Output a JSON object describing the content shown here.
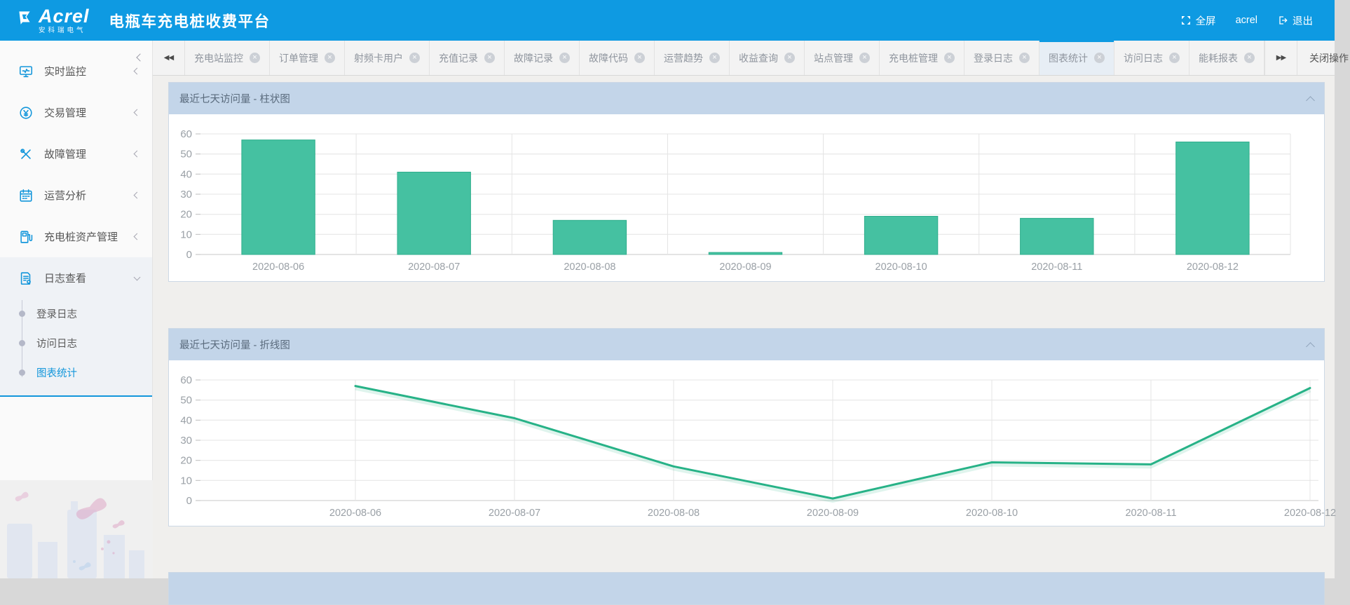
{
  "header": {
    "brand": "Acrel",
    "brand_sub": "安科瑞电气",
    "title": "电瓶车充电桩收费平台",
    "fullscreen_label": "全屏",
    "username": "acrel",
    "logout_label": "退出"
  },
  "sidebar": {
    "items": [
      {
        "icon": "monitor-icon",
        "label": "实时监控",
        "expanded": false
      },
      {
        "icon": "transaction-icon",
        "label": "交易管理",
        "expanded": false
      },
      {
        "icon": "tools-icon",
        "label": "故障管理",
        "expanded": false
      },
      {
        "icon": "calendar-icon",
        "label": "运营分析",
        "expanded": false
      },
      {
        "icon": "charging-pile-icon",
        "label": "充电桩资产管理",
        "expanded": false
      },
      {
        "icon": "log-icon",
        "label": "日志查看",
        "expanded": true,
        "children": [
          {
            "label": "登录日志",
            "active": false
          },
          {
            "label": "访问日志",
            "active": false
          },
          {
            "label": "图表统计",
            "active": true
          }
        ]
      }
    ]
  },
  "tabbar": {
    "tabs": [
      {
        "label": "充电站监控",
        "active": false
      },
      {
        "label": "订单管理",
        "active": false
      },
      {
        "label": "射频卡用户",
        "active": false
      },
      {
        "label": "充值记录",
        "active": false
      },
      {
        "label": "故障记录",
        "active": false
      },
      {
        "label": "故障代码",
        "active": false
      },
      {
        "label": "运营趋势",
        "active": false
      },
      {
        "label": "收益查询",
        "active": false
      },
      {
        "label": "站点管理",
        "active": false
      },
      {
        "label": "充电桩管理",
        "active": false
      },
      {
        "label": "登录日志",
        "active": false
      },
      {
        "label": "图表统计",
        "active": true
      },
      {
        "label": "访问日志",
        "active": false
      },
      {
        "label": "能耗报表",
        "active": false
      }
    ],
    "close_menu_label": "关闭操作"
  },
  "panels": [
    {
      "title": "最近七天访问量 - 柱状图"
    },
    {
      "title": "最近七天访问量 - 折线图"
    },
    {
      "title": ""
    }
  ],
  "chart_data": [
    {
      "type": "bar",
      "title": "最近七天访问量 - 柱状图",
      "categories": [
        "2020-08-06",
        "2020-08-07",
        "2020-08-08",
        "2020-08-09",
        "2020-08-10",
        "2020-08-11",
        "2020-08-12"
      ],
      "values": [
        57,
        41,
        17,
        1,
        19,
        18,
        56
      ],
      "xlabel": "",
      "ylabel": "",
      "ylim": [
        0,
        60
      ],
      "ytick_interval": 10,
      "grid": true,
      "legend": false,
      "bar_color": "#45c1a1"
    },
    {
      "type": "line",
      "title": "最近七天访问量 - 折线图",
      "categories": [
        "2020-08-06",
        "2020-08-07",
        "2020-08-08",
        "2020-08-09",
        "2020-08-10",
        "2020-08-11",
        "2020-08-12"
      ],
      "values": [
        57,
        41,
        17,
        1,
        19,
        18,
        56
      ],
      "xlabel": "",
      "ylabel": "",
      "ylim": [
        0,
        60
      ],
      "ytick_interval": 10,
      "grid": true,
      "legend": false,
      "line_color": "#27b287"
    }
  ],
  "colors": {
    "topbar_blue": "#0e9ae2",
    "accent_blue": "#1296db",
    "panel_header_blue": "#c3d5e9",
    "bar_teal": "#45c1a1",
    "line_green": "#27b287",
    "content_bg": "#f0efed"
  }
}
